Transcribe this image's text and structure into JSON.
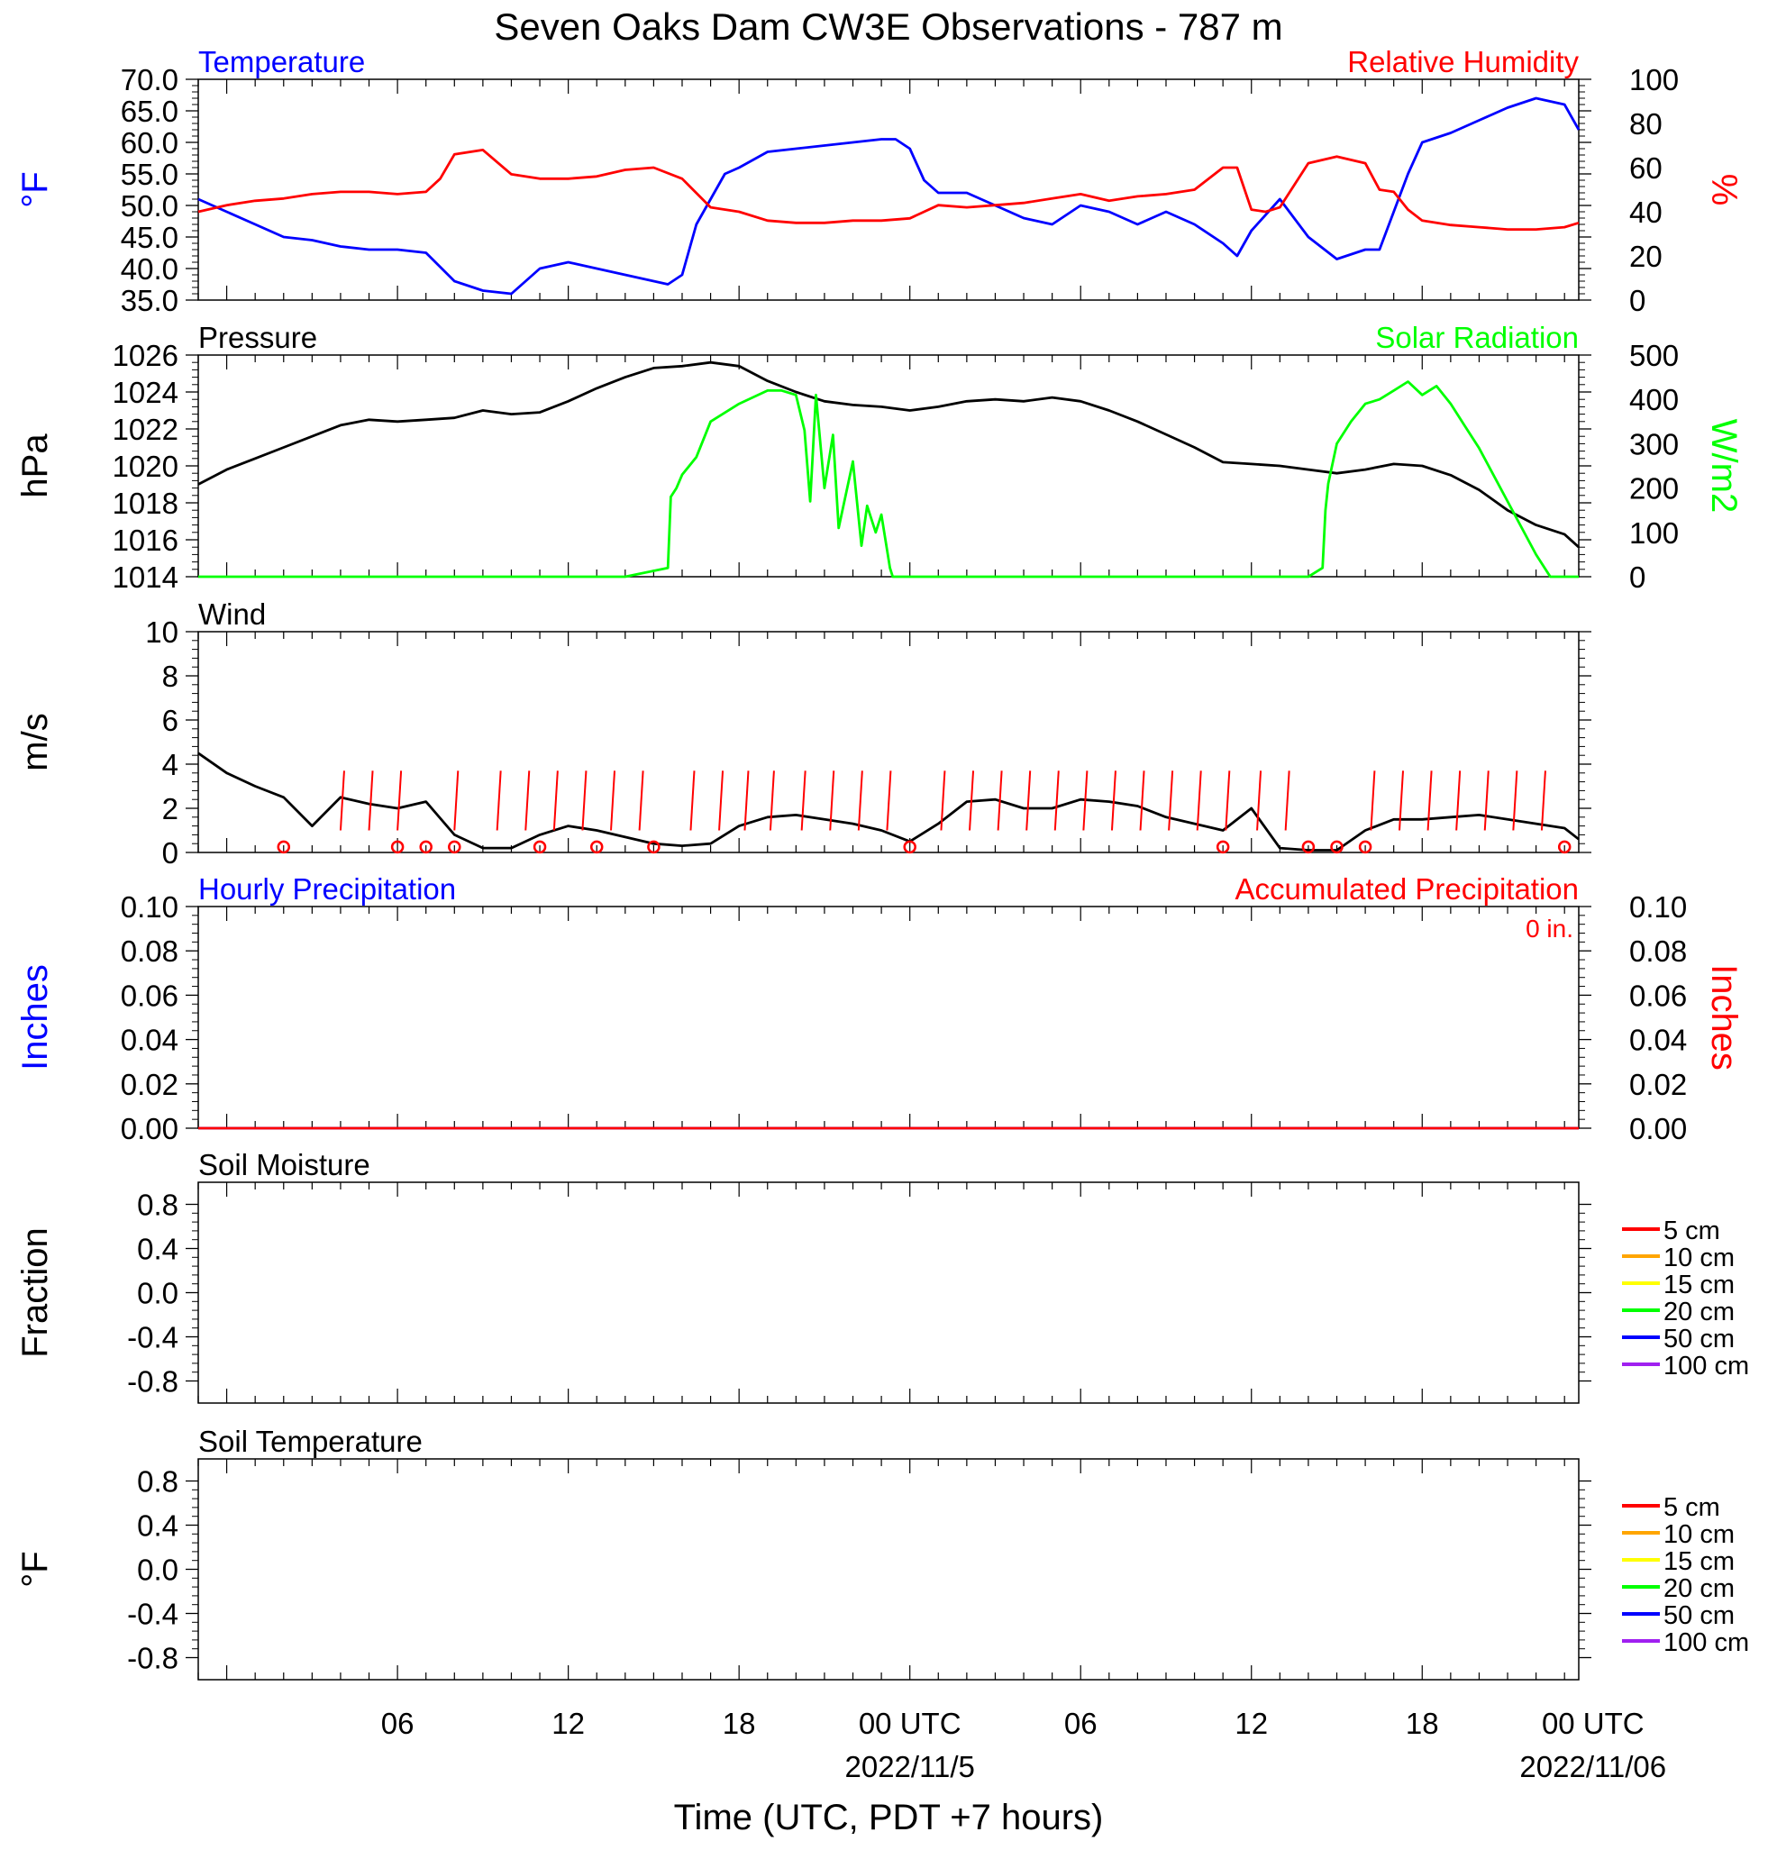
{
  "title": "Seven Oaks Dam CW3E Observations - 787 m",
  "xaxis": {
    "label": "Time (UTC, PDT +7 hours)",
    "range_hours": [
      -1,
      47.5
    ],
    "ticks": [
      {
        "hour": 6,
        "label": "06",
        "sublabel": ""
      },
      {
        "hour": 12,
        "label": "12",
        "sublabel": ""
      },
      {
        "hour": 18,
        "label": "18",
        "sublabel": ""
      },
      {
        "hour": 24,
        "label": "00 UTC",
        "sublabel": "2022/11/5"
      },
      {
        "hour": 30,
        "label": "06",
        "sublabel": ""
      },
      {
        "hour": 36,
        "label": "12",
        "sublabel": ""
      },
      {
        "hour": 42,
        "label": "18",
        "sublabel": ""
      },
      {
        "hour": 48,
        "label": "00 UTC",
        "sublabel": "2022/11/06"
      }
    ]
  },
  "colors": {
    "temperature": "#0000ff",
    "humidity": "#ff0000",
    "pressure": "#000000",
    "solar": "#00ff00",
    "wind": "#000000",
    "barb": "#ff0000"
  },
  "chart_data": [
    {
      "type": "line",
      "panel": "temperature-humidity",
      "left_title": "Temperature",
      "right_title": "Relative Humidity",
      "ylabel_left": "°F",
      "ylabel_right": "%",
      "ylim_left": [
        35,
        70
      ],
      "ylim_right": [
        0,
        100
      ],
      "yticks_left": [
        "35.0",
        "40.0",
        "45.0",
        "50.0",
        "55.0",
        "60.0",
        "65.0",
        "70.0"
      ],
      "yticks_right": [
        "0",
        "20",
        "40",
        "60",
        "80",
        "100"
      ],
      "series": [
        {
          "name": "Temperature",
          "axis": "left",
          "color": "#0000ff",
          "x": [
            -1,
            0,
            1,
            2,
            3,
            4,
            5,
            6,
            7,
            8,
            9,
            10,
            11,
            12,
            13,
            14,
            15,
            15.5,
            16,
            16.5,
            17,
            17.5,
            18,
            19,
            20,
            21,
            22,
            23,
            23.5,
            24,
            24.5,
            25,
            26,
            27,
            28,
            29,
            30,
            31,
            32,
            33,
            34,
            35,
            35.5,
            36,
            37,
            38,
            39,
            40,
            40.5,
            41,
            41.5,
            42,
            43,
            44,
            45,
            46,
            47,
            47.5
          ],
          "y": [
            51,
            49,
            47,
            45,
            44.5,
            43.5,
            43,
            43,
            42.5,
            38,
            36.5,
            36,
            40,
            41,
            40,
            39,
            38,
            37.5,
            39,
            47,
            51,
            55,
            56,
            58.5,
            59,
            59.5,
            60,
            60.5,
            60.5,
            59,
            54,
            52,
            52,
            50,
            48,
            47,
            50,
            49,
            47,
            49,
            47,
            44,
            42,
            46,
            51,
            45,
            41.5,
            43,
            43,
            49,
            55,
            60,
            61.5,
            63.5,
            65.5,
            67,
            66,
            62
          ]
        },
        {
          "name": "Relative Humidity",
          "axis": "right",
          "color": "#ff0000",
          "x": [
            -1,
            0,
            1,
            2,
            3,
            4,
            5,
            6,
            7,
            7.5,
            8,
            9,
            10,
            11,
            12,
            13,
            14,
            15,
            16,
            17,
            18,
            19,
            20,
            21,
            22,
            23,
            24,
            25,
            26,
            27,
            28,
            29,
            30,
            31,
            32,
            33,
            34,
            35,
            35.5,
            36,
            36.5,
            37,
            38,
            39,
            40,
            40.5,
            41,
            41.5,
            42,
            43,
            44,
            45,
            46,
            47,
            47.5
          ],
          "y": [
            40,
            43,
            45,
            46,
            48,
            49,
            49,
            48,
            49,
            55,
            66,
            68,
            57,
            55,
            55,
            56,
            59,
            60,
            55,
            42,
            40,
            36,
            35,
            35,
            36,
            36,
            37,
            43,
            42,
            43,
            44,
            46,
            48,
            45,
            47,
            48,
            50,
            60,
            60,
            41,
            40,
            42,
            62,
            65,
            62,
            50,
            49,
            41,
            36,
            34,
            33,
            32,
            32,
            33,
            35
          ]
        }
      ]
    },
    {
      "type": "line",
      "panel": "pressure-solar",
      "left_title": "Pressure",
      "right_title": "Solar Radiation",
      "ylabel_left": "hPa",
      "ylabel_right": "W/m2",
      "ylim_left": [
        1014,
        1026
      ],
      "ylim_right": [
        0,
        500
      ],
      "yticks_left": [
        "1014",
        "1016",
        "1018",
        "1020",
        "1022",
        "1024",
        "1026"
      ],
      "yticks_right": [
        "0",
        "100",
        "200",
        "300",
        "400",
        "500"
      ],
      "series": [
        {
          "name": "Pressure",
          "axis": "left",
          "color": "#000000",
          "x": [
            -1,
            0,
            1,
            2,
            3,
            4,
            5,
            6,
            7,
            8,
            9,
            10,
            11,
            12,
            13,
            14,
            15,
            16,
            17,
            18,
            19,
            20,
            21,
            22,
            23,
            24,
            25,
            26,
            27,
            28,
            29,
            30,
            31,
            32,
            33,
            34,
            35,
            36,
            37,
            38,
            39,
            40,
            41,
            42,
            43,
            44,
            45,
            46,
            47,
            47.5
          ],
          "y": [
            1019,
            1019.8,
            1020.4,
            1021,
            1021.6,
            1022.2,
            1022.5,
            1022.4,
            1022.5,
            1022.6,
            1023,
            1022.8,
            1022.9,
            1023.5,
            1024.2,
            1024.8,
            1025.3,
            1025.4,
            1025.6,
            1025.4,
            1024.6,
            1024,
            1023.5,
            1023.3,
            1023.2,
            1023,
            1023.2,
            1023.5,
            1023.6,
            1023.5,
            1023.7,
            1023.5,
            1023,
            1022.4,
            1021.7,
            1021,
            1020.2,
            1020.1,
            1020,
            1019.8,
            1019.6,
            1019.8,
            1020.1,
            1020,
            1019.5,
            1018.7,
            1017.6,
            1016.8,
            1016.3,
            1015.6
          ]
        },
        {
          "name": "Solar Radiation",
          "axis": "right",
          "color": "#00ff00",
          "x": [
            -1,
            14,
            15.5,
            15.6,
            15.8,
            16,
            16.5,
            17,
            18,
            19,
            19.5,
            20,
            20.3,
            20.5,
            20.7,
            21,
            21.3,
            21.5,
            22,
            22.3,
            22.5,
            22.8,
            23,
            23.3,
            23.4,
            23.5,
            24,
            36,
            38,
            38.5,
            38.6,
            38.7,
            39,
            39.5,
            40,
            40.5,
            41,
            41.5,
            42,
            42.5,
            43,
            43.5,
            44,
            44.5,
            45,
            45.5,
            46,
            46.5,
            47,
            47.1,
            47.5
          ],
          "y": [
            0,
            0,
            20,
            180,
            200,
            230,
            270,
            350,
            390,
            420,
            420,
            410,
            330,
            170,
            410,
            200,
            320,
            110,
            260,
            70,
            160,
            100,
            140,
            20,
            0,
            0,
            0,
            0,
            0,
            20,
            150,
            210,
            300,
            350,
            390,
            400,
            420,
            440,
            410,
            430,
            390,
            340,
            290,
            230,
            170,
            110,
            50,
            0,
            0,
            0,
            0
          ]
        }
      ]
    },
    {
      "type": "line",
      "panel": "wind",
      "left_title": "Wind",
      "ylabel_left": "m/s",
      "ylim_left": [
        0,
        10
      ],
      "yticks_left": [
        "0",
        "2",
        "4",
        "6",
        "8",
        "10"
      ],
      "series": [
        {
          "name": "Wind speed",
          "axis": "left",
          "color": "#000000",
          "x": [
            -1,
            0,
            1,
            2,
            3,
            4,
            5,
            6,
            7,
            8,
            9,
            10,
            11,
            12,
            13,
            14,
            15,
            16,
            17,
            18,
            19,
            20,
            21,
            22,
            23,
            24,
            25,
            26,
            27,
            28,
            29,
            30,
            31,
            32,
            33,
            34,
            35,
            36,
            37,
            38,
            39,
            40,
            41,
            42,
            43,
            44,
            45,
            46,
            47,
            47.5
          ],
          "y": [
            4.5,
            3.6,
            3.0,
            2.5,
            1.2,
            2.5,
            2.2,
            2.0,
            2.3,
            0.8,
            0.2,
            0.2,
            0.8,
            1.2,
            1.0,
            0.7,
            0.4,
            0.3,
            0.4,
            1.2,
            1.6,
            1.7,
            1.5,
            1.3,
            1.0,
            0.5,
            1.3,
            2.3,
            2.4,
            2.0,
            2.0,
            2.4,
            2.3,
            2.1,
            1.6,
            1.3,
            1.0,
            2.0,
            0.2,
            0.1,
            0.1,
            1.0,
            1.5,
            1.5,
            1.6,
            1.7,
            1.5,
            1.3,
            1.1,
            0.6
          ]
        }
      ],
      "calm_circles_hours": [
        2,
        6,
        7,
        8,
        11,
        13,
        15,
        24,
        35,
        38,
        39,
        40,
        47
      ],
      "barbs_hours": [
        4,
        5,
        6,
        8,
        9.5,
        10.5,
        11.5,
        12.5,
        13.5,
        14.5,
        16.3,
        17.3,
        18.2,
        19.1,
        20.2,
        21.2,
        22.2,
        23.2,
        25.1,
        26.1,
        27.1,
        28.1,
        29.1,
        30.1,
        31.1,
        32.1,
        33.1,
        34.1,
        35.1,
        36.2,
        37.2,
        40.2,
        41.2,
        42.2,
        43.2,
        44.2,
        45.2,
        46.2
      ]
    },
    {
      "type": "line",
      "panel": "precipitation",
      "left_title": "Hourly Precipitation",
      "right_title": "Accumulated Precipitation",
      "annotation": "0 in.",
      "ylabel_left": "Inches",
      "ylabel_right": "Inches",
      "ylim_left": [
        0,
        0.1
      ],
      "ylim_right": [
        0,
        0.1
      ],
      "yticks_left": [
        "0.00",
        "0.02",
        "0.04",
        "0.06",
        "0.08",
        "0.10"
      ],
      "yticks_right": [
        "0.00",
        "0.02",
        "0.04",
        "0.06",
        "0.08",
        "0.10"
      ],
      "series": [
        {
          "name": "Hourly Precipitation",
          "axis": "left",
          "color": "#0000ff",
          "x": [
            -1,
            47.5
          ],
          "y": [
            0,
            0
          ]
        },
        {
          "name": "Accumulated Precipitation",
          "axis": "right",
          "color": "#ff0000",
          "x": [
            -1,
            47.5
          ],
          "y": [
            0,
            0
          ]
        }
      ]
    },
    {
      "type": "line",
      "panel": "soil-moisture",
      "left_title": "Soil Moisture",
      "ylabel_left": "Fraction",
      "ylim_left": [
        -1,
        1
      ],
      "yticks_left": [
        "-0.8",
        "-0.4",
        "0.0",
        "0.4",
        "0.8"
      ],
      "legend": [
        {
          "name": "5 cm",
          "color": "#ff0000"
        },
        {
          "name": "10 cm",
          "color": "#ffa500"
        },
        {
          "name": "15 cm",
          "color": "#ffff00"
        },
        {
          "name": "20 cm",
          "color": "#00ff00"
        },
        {
          "name": "50 cm",
          "color": "#0000ff"
        },
        {
          "name": "100 cm",
          "color": "#a020f0"
        }
      ],
      "series": []
    },
    {
      "type": "line",
      "panel": "soil-temperature",
      "left_title": "Soil Temperature",
      "ylabel_left": "°F",
      "ylim_left": [
        -1,
        1
      ],
      "yticks_left": [
        "-0.8",
        "-0.4",
        "0.0",
        "0.4",
        "0.8"
      ],
      "legend": [
        {
          "name": "5 cm",
          "color": "#ff0000"
        },
        {
          "name": "10 cm",
          "color": "#ffa500"
        },
        {
          "name": "15 cm",
          "color": "#ffff00"
        },
        {
          "name": "20 cm",
          "color": "#00ff00"
        },
        {
          "name": "50 cm",
          "color": "#0000ff"
        },
        {
          "name": "100 cm",
          "color": "#a020f0"
        }
      ],
      "series": []
    }
  ]
}
